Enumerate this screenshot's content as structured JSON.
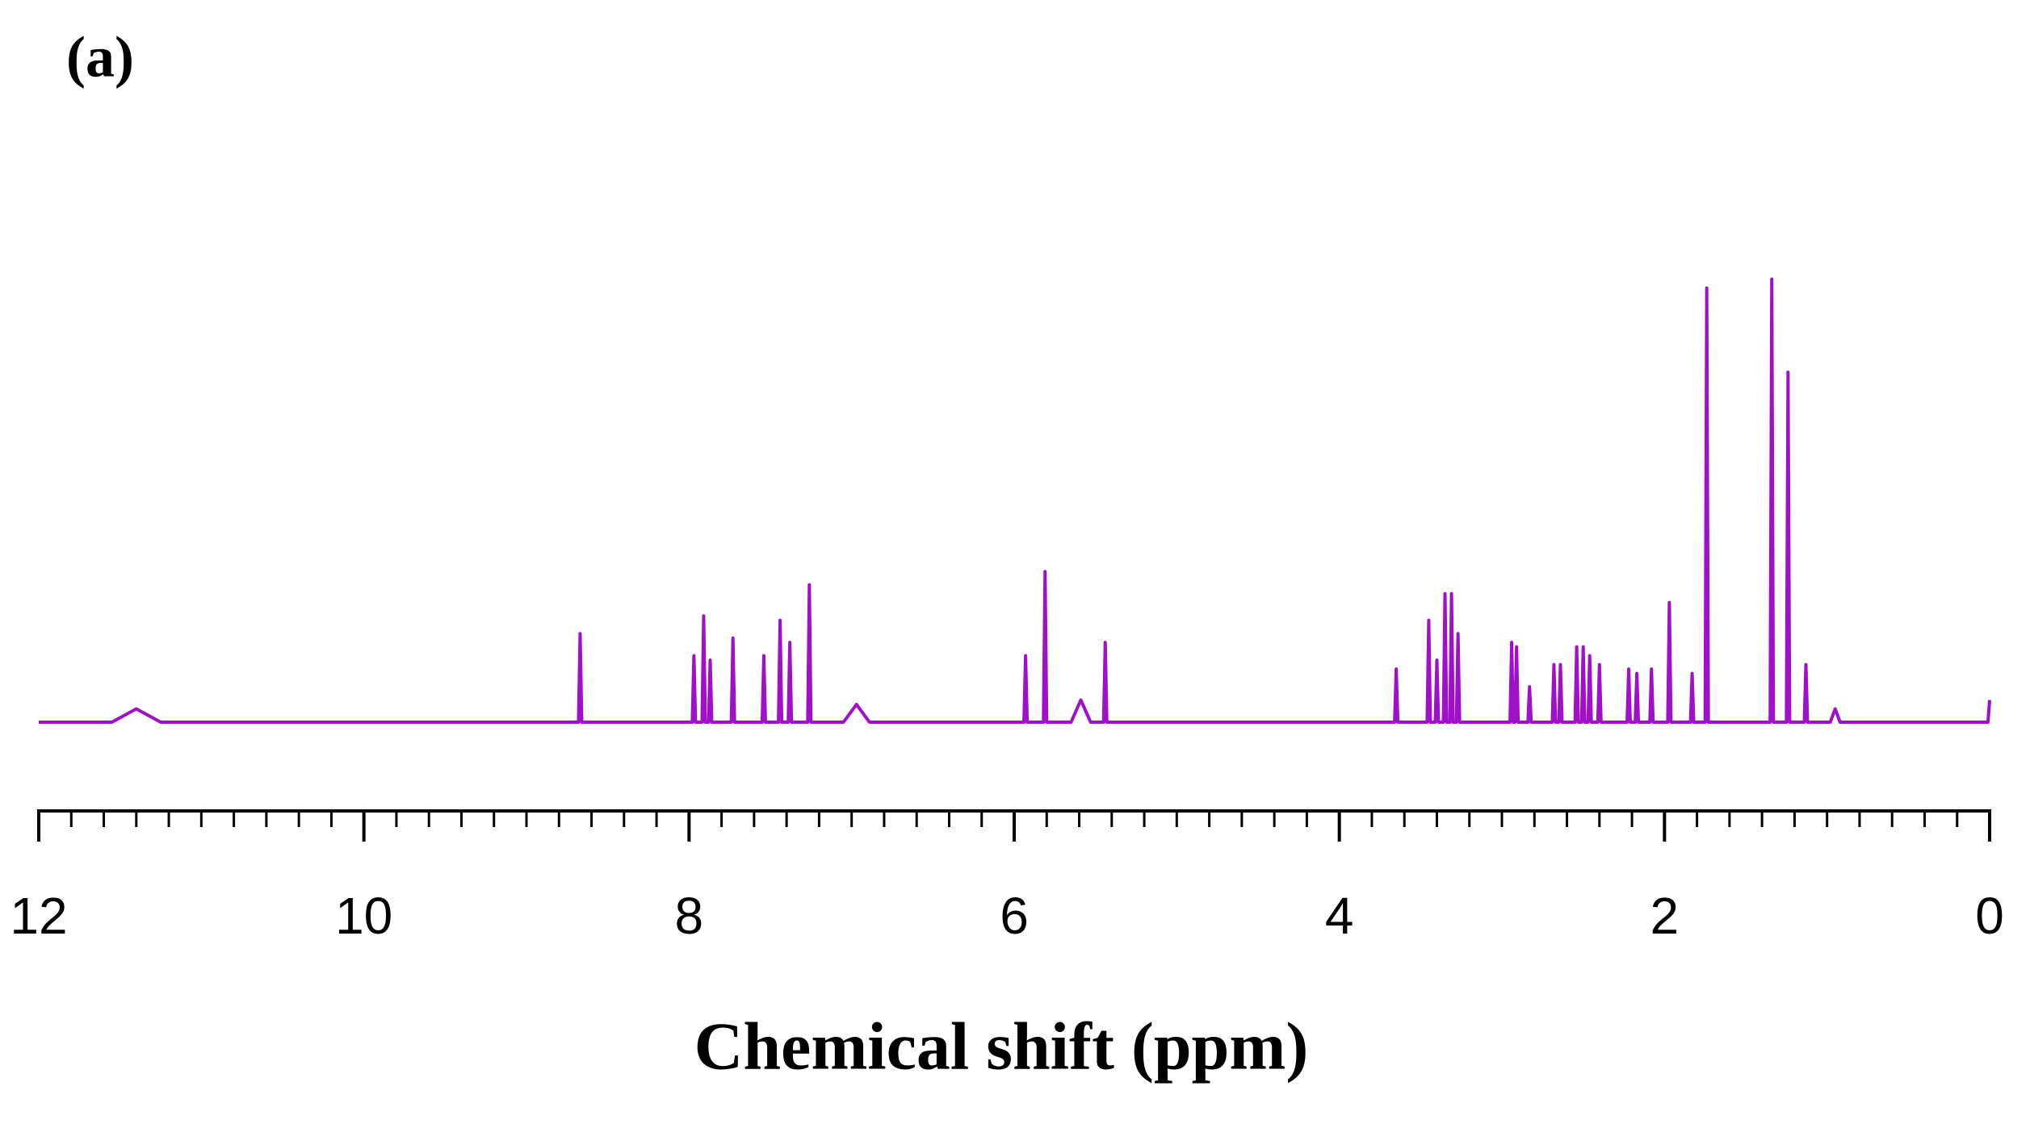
{
  "chart_data": {
    "type": "line",
    "title": "(a)",
    "xlabel": "Chemical shift (ppm)",
    "color": "#a010c8",
    "xlim": [
      12,
      0
    ],
    "xticks": [
      12,
      10,
      8,
      6,
      4,
      2,
      0
    ],
    "xminorticks": [
      11.8,
      11.6,
      11.4,
      11.2,
      11,
      10.8,
      10.6,
      10.4,
      10.2,
      9.8,
      9.6,
      9.4,
      9.2,
      9,
      8.8,
      8.6,
      8.4,
      8.2,
      7.8,
      7.6,
      7.4,
      7.2,
      7,
      6.8,
      6.6,
      6.4,
      6.2,
      5.8,
      5.6,
      5.4,
      5.2,
      5,
      4.8,
      4.6,
      4.4,
      4.2,
      3.8,
      3.6,
      3.4,
      3.2,
      3,
      2.8,
      2.6,
      2.4,
      2.2,
      1.8,
      1.6,
      1.4,
      1.2,
      1,
      0.8,
      0.6,
      0.4,
      0.2
    ],
    "x": [
      12,
      11.55,
      11.4,
      11.25,
      8.68,
      8.67,
      8.66,
      7.98,
      7.97,
      7.96,
      7.92,
      7.91,
      7.9,
      7.88,
      7.87,
      7.86,
      7.74,
      7.73,
      7.72,
      7.55,
      7.54,
      7.53,
      7.45,
      7.44,
      7.43,
      7.39,
      7.38,
      7.37,
      7.27,
      7.26,
      7.25,
      7.05,
      6.97,
      6.89,
      5.94,
      5.93,
      5.92,
      5.82,
      5.81,
      5.8,
      5.65,
      5.59,
      5.53,
      5.45,
      5.44,
      5.43,
      3.66,
      3.65,
      3.64,
      3.46,
      3.45,
      3.44,
      3.41,
      3.4,
      3.39,
      3.36,
      3.35,
      3.34,
      3.32,
      3.31,
      3.3,
      3.28,
      3.27,
      3.26,
      2.95,
      2.94,
      2.93,
      2.92,
      2.91,
      2.9,
      2.84,
      2.83,
      2.82,
      2.69,
      2.68,
      2.67,
      2.65,
      2.64,
      2.63,
      2.55,
      2.54,
      2.53,
      2.51,
      2.5,
      2.49,
      2.47,
      2.46,
      2.45,
      2.41,
      2.4,
      2.39,
      2.23,
      2.22,
      2.21,
      2.18,
      2.17,
      2.16,
      2.09,
      2.08,
      2.07,
      1.98,
      1.97,
      1.96,
      1.84,
      1.83,
      1.82,
      1.75,
      1.74,
      1.73,
      1.35,
      1.34,
      1.33,
      1.25,
      1.24,
      1.23,
      1.14,
      1.13,
      1.12,
      0.98,
      0.95,
      0.92,
      0.01,
      0
    ],
    "values": [
      0,
      0,
      3,
      0,
      0,
      20,
      0,
      0,
      15,
      0,
      0,
      24,
      0,
      0,
      14,
      0,
      0,
      19,
      0,
      0,
      15,
      0,
      0,
      23,
      0,
      0,
      18,
      0,
      0,
      31,
      0,
      0,
      4,
      0,
      0,
      15,
      0,
      0,
      34,
      0,
      0,
      5,
      0,
      0,
      18,
      0,
      0,
      12,
      0,
      0,
      23,
      0,
      0,
      14,
      0,
      0,
      29,
      0,
      0,
      29,
      0,
      0,
      20,
      0,
      0,
      18,
      0,
      0,
      17,
      0,
      0,
      8,
      0,
      0,
      13,
      0,
      0,
      13,
      0,
      0,
      17,
      0,
      0,
      17,
      0,
      0,
      15,
      0,
      0,
      13,
      0,
      0,
      12,
      0,
      0,
      11,
      0,
      0,
      12,
      0,
      0,
      27,
      0,
      0,
      11,
      0,
      0,
      98,
      0,
      0,
      100,
      0,
      0,
      79,
      0,
      0,
      13,
      0,
      0,
      3,
      0,
      0,
      5
    ]
  }
}
